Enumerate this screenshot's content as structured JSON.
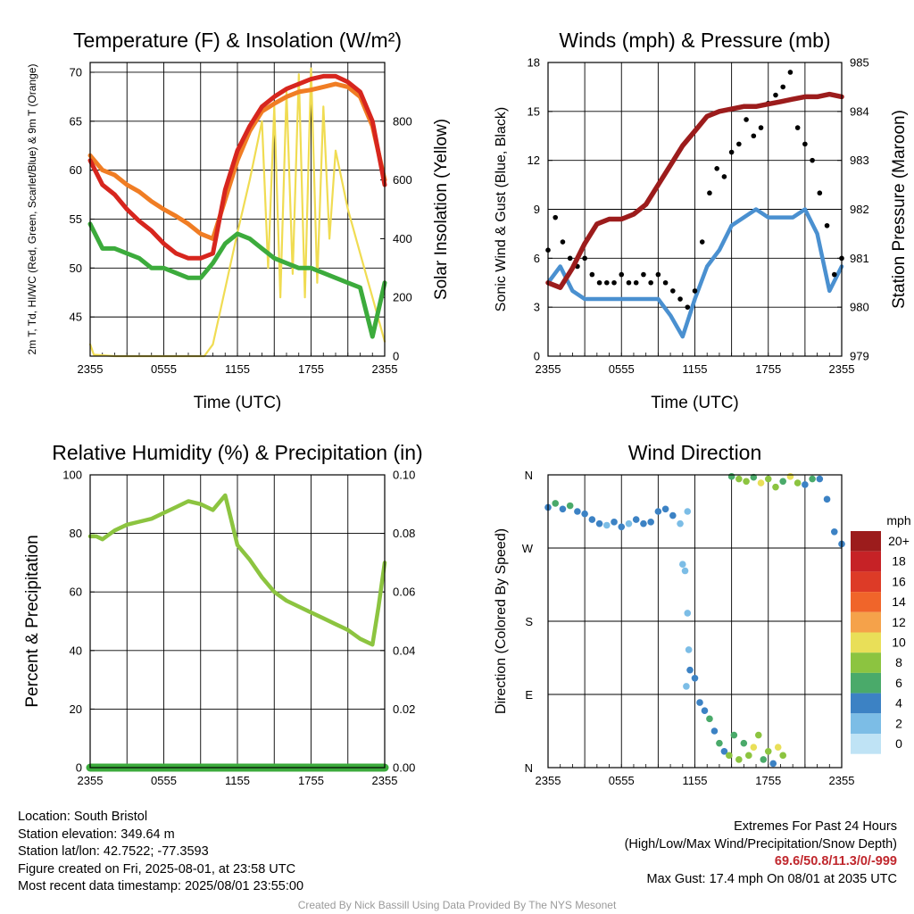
{
  "chart_data": [
    {
      "type": "line",
      "title": "Temperature (F) & Insolation (W/m²)",
      "xlabel": "Time (UTC)",
      "ylabel": "2m T, Td, HI/WC (Red, Green, Scarlet/Blue) & 9m T (Orange)",
      "y2label": "Solar Insolation (Yellow)",
      "x_ticks": [
        "2355",
        "0555",
        "1155",
        "1755",
        "2355"
      ],
      "ylim": [
        41,
        71
      ],
      "y_ticks": [
        45,
        50,
        55,
        60,
        65,
        70
      ],
      "y2lim": [
        0,
        1000
      ],
      "y2_ticks": [
        0,
        200,
        400,
        600,
        800
      ],
      "grid": true,
      "series": [
        {
          "name": "2m T",
          "color": "#d7261e",
          "axis": "left",
          "x": [
            0,
            1,
            2,
            3,
            4,
            5,
            6,
            7,
            8,
            9,
            10,
            11,
            12,
            13,
            14,
            15,
            16,
            17,
            18,
            19,
            20,
            21,
            22,
            23,
            24
          ],
          "values": [
            61,
            58.5,
            57.5,
            56,
            54.8,
            53.8,
            52.5,
            51.5,
            51,
            51,
            51.5,
            58,
            62,
            64.5,
            66.5,
            67.5,
            68.3,
            68.8,
            69.3,
            69.6,
            69.6,
            69,
            68,
            65,
            58.5
          ]
        },
        {
          "name": "9m T",
          "color": "#f07d24",
          "axis": "left",
          "x": [
            0,
            1,
            2,
            3,
            4,
            5,
            6,
            7,
            8,
            9,
            10,
            11,
            12,
            13,
            14,
            15,
            16,
            17,
            18,
            19,
            20,
            21,
            22,
            23,
            24
          ],
          "values": [
            61.5,
            60,
            59.5,
            58.5,
            57.8,
            56.8,
            56,
            55.3,
            54.5,
            53.5,
            53,
            57,
            61,
            64,
            66,
            66.8,
            67.5,
            68,
            68.2,
            68.5,
            68.8,
            68.5,
            67.5,
            64.5,
            59
          ]
        },
        {
          "name": "Td",
          "color": "#3cab3c",
          "axis": "left",
          "x": [
            0,
            1,
            2,
            3,
            4,
            5,
            6,
            7,
            8,
            9,
            10,
            11,
            12,
            13,
            14,
            15,
            16,
            17,
            18,
            19,
            20,
            21,
            22,
            23,
            24
          ],
          "values": [
            54.5,
            52,
            52,
            51.5,
            51,
            50,
            50,
            49.5,
            49,
            49,
            50.5,
            52.5,
            53.5,
            53,
            52,
            51,
            50.5,
            50,
            50,
            49.5,
            49,
            48.5,
            48,
            43,
            48.5
          ]
        },
        {
          "name": "Solar Insolation",
          "color": "#f0dc52",
          "axis": "right",
          "x": [
            0,
            0.3,
            2,
            4,
            6,
            8,
            9.3,
            10,
            11,
            12,
            13,
            14,
            14.5,
            15,
            15.5,
            16,
            16.5,
            17,
            17.5,
            18,
            18.5,
            19,
            19.5,
            20,
            21,
            22,
            23,
            24
          ],
          "values": [
            40,
            5,
            0,
            0,
            0,
            0,
            0,
            40,
            230,
            420,
            600,
            800,
            300,
            850,
            200,
            900,
            280,
            960,
            200,
            980,
            250,
            850,
            400,
            700,
            500,
            350,
            200,
            50
          ]
        }
      ]
    },
    {
      "type": "line",
      "title": "Winds (mph) & Pressure (mb)",
      "xlabel": "Time (UTC)",
      "ylabel": "Sonic Wind & Gust (Blue, Black)",
      "y2label": "Station Pressure (Maroon)",
      "x_ticks": [
        "2355",
        "0555",
        "1155",
        "1755",
        "2355"
      ],
      "ylim": [
        0,
        18
      ],
      "y_ticks": [
        0,
        3,
        6,
        9,
        12,
        15,
        18
      ],
      "y2lim": [
        979,
        985
      ],
      "y2_ticks": [
        979,
        980,
        981,
        982,
        983,
        984,
        985
      ],
      "grid": true,
      "series": [
        {
          "name": "Sonic Wind",
          "color": "#4a90d0",
          "axis": "left",
          "x": [
            0,
            1,
            2,
            3,
            4,
            5,
            6,
            7,
            8,
            9,
            10,
            11,
            12,
            13,
            14,
            15,
            16,
            17,
            18,
            19,
            20,
            21,
            22,
            23,
            24
          ],
          "values": [
            4.5,
            5.5,
            4,
            3.5,
            3.5,
            3.5,
            3.5,
            3.5,
            3.5,
            3.5,
            2.5,
            1.2,
            3.5,
            5.5,
            6.5,
            8,
            8.5,
            9,
            8.5,
            8.5,
            8.5,
            9,
            7.5,
            4,
            5.5
          ]
        },
        {
          "name": "Gust",
          "color": "#000000",
          "axis": "left",
          "x": [
            0,
            0.6,
            1.2,
            1.8,
            2.4,
            3,
            3.6,
            4.2,
            4.8,
            5.4,
            6,
            6.6,
            7.2,
            7.8,
            8.4,
            9,
            9.6,
            10.2,
            10.8,
            11.4,
            12,
            12.6,
            13.2,
            13.8,
            14.4,
            15,
            15.6,
            16.2,
            16.8,
            17.4,
            18,
            18.6,
            19.2,
            19.8,
            20.4,
            21,
            21.6,
            22.2,
            22.8,
            23.4,
            24
          ],
          "values": [
            6.5,
            8.5,
            7,
            6,
            5.5,
            6,
            5,
            4.5,
            4.5,
            4.5,
            5,
            4.5,
            4.5,
            5,
            4.5,
            5,
            4.5,
            4,
            3.5,
            3,
            4,
            7,
            10,
            11.5,
            11,
            12.5,
            13,
            14.5,
            13.5,
            14,
            15.5,
            16,
            16.5,
            17.4,
            14,
            13,
            12,
            10,
            8,
            5,
            6
          ]
        },
        {
          "name": "Station Pressure",
          "color": "#9c1c1c",
          "axis": "right",
          "x": [
            0,
            1,
            2,
            3,
            4,
            5,
            6,
            7,
            8,
            9,
            10,
            11,
            12,
            13,
            14,
            15,
            16,
            17,
            18,
            19,
            20,
            21,
            22,
            23,
            24
          ],
          "values": [
            980.5,
            980.4,
            980.8,
            981.3,
            981.7,
            981.8,
            981.8,
            981.9,
            982.1,
            982.5,
            982.9,
            983.3,
            983.6,
            983.9,
            984.0,
            984.05,
            984.1,
            984.1,
            984.15,
            984.2,
            984.25,
            984.3,
            984.3,
            984.35,
            984.3
          ]
        }
      ]
    },
    {
      "type": "line",
      "title": "Relative Humidity (%) & Precipitation (in)",
      "ylabel": "Percent & Precipitation",
      "x_ticks": [
        "2355",
        "0555",
        "1155",
        "1755",
        "2355"
      ],
      "ylim": [
        0,
        100
      ],
      "y_ticks": [
        0,
        20,
        40,
        60,
        80,
        100
      ],
      "y2lim": [
        0,
        0.1
      ],
      "y2_ticks": [
        "0.00",
        "0.02",
        "0.04",
        "0.06",
        "0.08",
        "0.10"
      ],
      "grid": true,
      "series": [
        {
          "name": "Relative Humidity",
          "color": "#8cc440",
          "axis": "left",
          "x": [
            0,
            0.5,
            1,
            2,
            3,
            4,
            5,
            6,
            7,
            8,
            9,
            10,
            11,
            12,
            13,
            14,
            15,
            16,
            17,
            18,
            19,
            20,
            21,
            22,
            23,
            23.5,
            24
          ],
          "values": [
            79,
            79,
            78,
            81,
            83,
            84,
            85,
            87,
            89,
            91,
            90,
            88,
            93,
            76,
            71,
            65,
            60,
            57,
            55,
            53,
            51,
            49,
            47,
            44,
            42,
            55,
            70
          ]
        },
        {
          "name": "Precipitation",
          "color": "#3cab3c",
          "axis": "right",
          "x": [
            0,
            24
          ],
          "values": [
            0,
            0
          ]
        }
      ]
    },
    {
      "type": "scatter",
      "title": "Wind Direction",
      "ylabel": "Direction (Colored By Speed)",
      "x_ticks": [
        "2355",
        "0555",
        "1155",
        "1755",
        "2355"
      ],
      "y_ticks": [
        "N",
        "E",
        "S",
        "W",
        "N"
      ],
      "ylim": [
        0,
        360
      ],
      "grid": true,
      "legend": {
        "title": "mph",
        "placement": "right",
        "labels": [
          "20+",
          "18",
          "16",
          "14",
          "12",
          "10",
          "8",
          "6",
          "4",
          "2",
          "0"
        ],
        "colors": [
          "#9c1c1c",
          "#c62226",
          "#dd3b27",
          "#f0652a",
          "#f5a24a",
          "#e9df58",
          "#8cc440",
          "#4aaa6a",
          "#3c82c4",
          "#7cbde6",
          "#bfe3f5"
        ]
      },
      "points": [
        {
          "x": 0,
          "y": 320,
          "s": 4
        },
        {
          "x": 0.6,
          "y": 325,
          "s": 5
        },
        {
          "x": 1.2,
          "y": 318,
          "s": 3
        },
        {
          "x": 1.8,
          "y": 322,
          "s": 6
        },
        {
          "x": 2.4,
          "y": 315,
          "s": 4
        },
        {
          "x": 3,
          "y": 312,
          "s": 3
        },
        {
          "x": 3.6,
          "y": 305,
          "s": 4
        },
        {
          "x": 4.2,
          "y": 300,
          "s": 3
        },
        {
          "x": 4.8,
          "y": 298,
          "s": 2
        },
        {
          "x": 5.4,
          "y": 302,
          "s": 4
        },
        {
          "x": 6,
          "y": 296,
          "s": 3
        },
        {
          "x": 6.6,
          "y": 300,
          "s": 2
        },
        {
          "x": 7.2,
          "y": 305,
          "s": 3
        },
        {
          "x": 7.8,
          "y": 300,
          "s": 4
        },
        {
          "x": 8.4,
          "y": 302,
          "s": 3
        },
        {
          "x": 9,
          "y": 315,
          "s": 4
        },
        {
          "x": 9.6,
          "y": 318,
          "s": 3
        },
        {
          "x": 10.2,
          "y": 310,
          "s": 3
        },
        {
          "x": 10.8,
          "y": 300,
          "s": 2
        },
        {
          "x": 11.4,
          "y": 315,
          "s": 2
        },
        {
          "x": 11,
          "y": 250,
          "s": 2
        },
        {
          "x": 11.2,
          "y": 242,
          "s": 2
        },
        {
          "x": 11.4,
          "y": 190,
          "s": 2
        },
        {
          "x": 11.5,
          "y": 145,
          "s": 2
        },
        {
          "x": 11.6,
          "y": 120,
          "s": 3
        },
        {
          "x": 11.3,
          "y": 100,
          "s": 1
        },
        {
          "x": 12,
          "y": 110,
          "s": 3
        },
        {
          "x": 12.4,
          "y": 80,
          "s": 4
        },
        {
          "x": 12.8,
          "y": 70,
          "s": 4
        },
        {
          "x": 13.2,
          "y": 60,
          "s": 5
        },
        {
          "x": 13.6,
          "y": 45,
          "s": 4
        },
        {
          "x": 14,
          "y": 30,
          "s": 6
        },
        {
          "x": 14.4,
          "y": 20,
          "s": 4
        },
        {
          "x": 14.8,
          "y": 15,
          "s": 7
        },
        {
          "x": 15.2,
          "y": 40,
          "s": 6
        },
        {
          "x": 15.6,
          "y": 10,
          "s": 8
        },
        {
          "x": 16,
          "y": 30,
          "s": 6
        },
        {
          "x": 16.4,
          "y": 15,
          "s": 7
        },
        {
          "x": 16.8,
          "y": 25,
          "s": 10
        },
        {
          "x": 17.2,
          "y": 40,
          "s": 8
        },
        {
          "x": 17.6,
          "y": 10,
          "s": 6
        },
        {
          "x": 18,
          "y": 20,
          "s": 8
        },
        {
          "x": 18.4,
          "y": 5,
          "s": 4
        },
        {
          "x": 18.8,
          "y": 25,
          "s": 9
        },
        {
          "x": 19.2,
          "y": 15,
          "s": 8
        },
        {
          "x": 15,
          "y": 358,
          "s": 6
        },
        {
          "x": 15.6,
          "y": 355,
          "s": 7
        },
        {
          "x": 16.2,
          "y": 352,
          "s": 8
        },
        {
          "x": 16.8,
          "y": 357,
          "s": 6
        },
        {
          "x": 17.4,
          "y": 350,
          "s": 9
        },
        {
          "x": 18,
          "y": 355,
          "s": 8
        },
        {
          "x": 18.6,
          "y": 345,
          "s": 8
        },
        {
          "x": 19.2,
          "y": 352,
          "s": 6
        },
        {
          "x": 19.8,
          "y": 358,
          "s": 10
        },
        {
          "x": 20.4,
          "y": 350,
          "s": 8
        },
        {
          "x": 21,
          "y": 348,
          "s": 4
        },
        {
          "x": 21.6,
          "y": 355,
          "s": 6
        },
        {
          "x": 22.2,
          "y": 355,
          "s": 4
        },
        {
          "x": 22.8,
          "y": 330,
          "s": 3
        },
        {
          "x": 23.4,
          "y": 290,
          "s": 4
        },
        {
          "x": 24,
          "y": 275,
          "s": 3
        }
      ]
    }
  ],
  "footer": {
    "location": "Location: South Bristol",
    "elevation": "Station elevation: 349.64 m",
    "latlon": "Station lat/lon: 42.7522; -77.3593",
    "created": "Figure created on Fri, 2025-08-01, at 23:58 UTC",
    "recent": "Most recent data timestamp: 2025/08/01 23:55:00"
  },
  "extremes": {
    "title": "Extremes For Past 24 Hours",
    "subtitle": "(High/Low/Max Wind/Precipitation/Snow Depth)",
    "values": "69.6/50.8/11.3/0/-999",
    "max_gust": "Max Gust: 17.4 mph On 08/01 at 2035 UTC"
  },
  "credit": "Created By Nick Bassill Using Data Provided By The NYS Mesonet"
}
